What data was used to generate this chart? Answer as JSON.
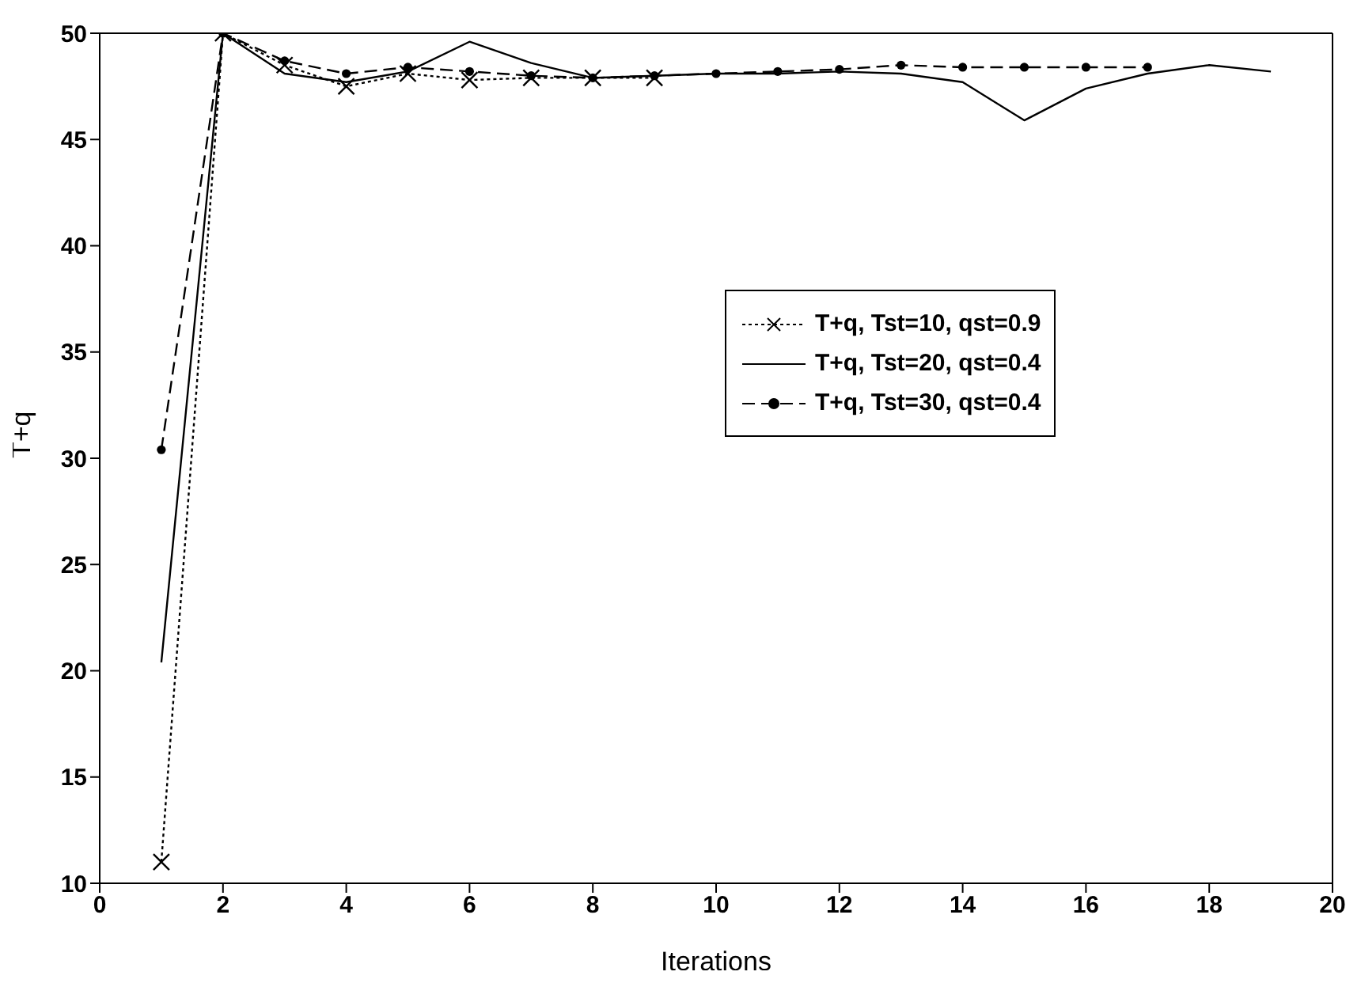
{
  "chart_data": {
    "type": "line",
    "xlabel": "Iterations",
    "ylabel": "T+q",
    "x": [
      1,
      2,
      3,
      4,
      5,
      6,
      7,
      8,
      9,
      10,
      11,
      12,
      13,
      14,
      15,
      16,
      17,
      18,
      19
    ],
    "series": [
      {
        "name": "T+q, Tst=10, qst=0.9",
        "color": "#000000",
        "marker": "cross",
        "line_style": "dotted",
        "values": [
          11,
          50,
          48.5,
          47.5,
          48.1,
          47.8,
          47.9,
          47.9,
          47.9,
          null,
          null,
          null,
          null,
          null,
          null,
          null,
          null,
          null,
          null
        ]
      },
      {
        "name": "T+q, Tst=20, qst=0.4",
        "color": "#000000",
        "marker": "none",
        "line_style": "solid",
        "values": [
          20.4,
          50,
          48.1,
          47.7,
          48.2,
          49.6,
          48.6,
          47.9,
          48.0,
          48.1,
          48.1,
          48.2,
          48.1,
          47.7,
          45.9,
          47.4,
          48.1,
          48.5,
          48.2
        ]
      },
      {
        "name": "T+q, Tst=30, qst=0.4",
        "color": "#000000",
        "marker": "circle",
        "line_style": "dashed",
        "values": [
          30.4,
          50,
          48.7,
          48.1,
          48.4,
          48.2,
          48.0,
          47.9,
          48.0,
          48.1,
          48.2,
          48.3,
          48.5,
          48.4,
          48.4,
          48.4,
          48.4,
          null,
          null
        ]
      }
    ],
    "xlim": [
      0,
      20
    ],
    "xticks": [
      0,
      2,
      4,
      6,
      8,
      10,
      12,
      14,
      16,
      18,
      20
    ],
    "ylim": [
      10,
      50
    ],
    "yticks": [
      10,
      15,
      20,
      25,
      30,
      35,
      40,
      45,
      50
    ],
    "grid": false,
    "legend": "right"
  }
}
